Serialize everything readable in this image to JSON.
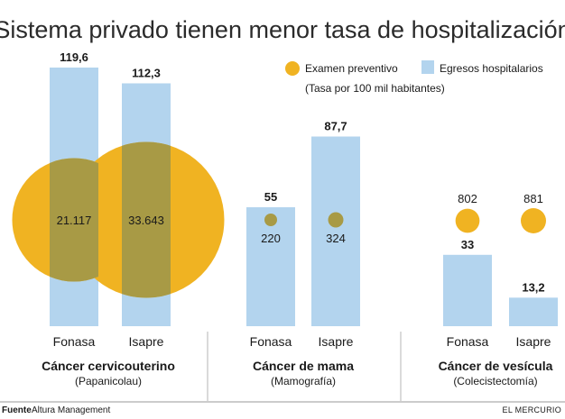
{
  "chart_data": {
    "type": "bar",
    "title": "Sistema privado tienen menor tasa de hospitalización",
    "legend": {
      "circle_label": "Examen preventivo",
      "bar_label": "Egresos hospitalarios",
      "note": "(Tasa por 100 mil habitantes)"
    },
    "series": [
      {
        "name": "Egresos hospitalarios",
        "kind": "bar"
      },
      {
        "name": "Examen preventivo",
        "kind": "bubble"
      }
    ],
    "groups": [
      {
        "title": "Cáncer cervicouterino",
        "subtitle": "(Papanicolau)",
        "items": [
          {
            "category": "Fonasa",
            "bar_value": 119.6,
            "bar_label": "119,6",
            "circle_value": 21117,
            "circle_label": "21.117"
          },
          {
            "category": "Isapre",
            "bar_value": 112.3,
            "bar_label": "112,3",
            "circle_value": 33643,
            "circle_label": "33.643"
          }
        ]
      },
      {
        "title": "Cáncer de mama",
        "subtitle": "(Mamografía)",
        "items": [
          {
            "category": "Fonasa",
            "bar_value": 55,
            "bar_label": "55",
            "circle_value": 220,
            "circle_label": "220"
          },
          {
            "category": "Isapre",
            "bar_value": 87.7,
            "bar_label": "87,7",
            "circle_value": 324,
            "circle_label": "324"
          }
        ]
      },
      {
        "title": "Cáncer de vesícula",
        "subtitle": "(Colecistectomía)",
        "items": [
          {
            "category": "Fonasa",
            "bar_value": 33,
            "bar_label": "33",
            "circle_value": 802,
            "circle_label": "802"
          },
          {
            "category": "Isapre",
            "bar_value": 13.2,
            "bar_label": "13,2",
            "circle_value": 881,
            "circle_label": "881"
          }
        ]
      }
    ]
  },
  "colors": {
    "bar": "#b3d4ee",
    "circle": "#f0b322",
    "overlap": "#a89a45"
  },
  "footer": {
    "source_label": "Fuente",
    "source_text": "Altura Management",
    "brand": "EL MERCURIO"
  }
}
